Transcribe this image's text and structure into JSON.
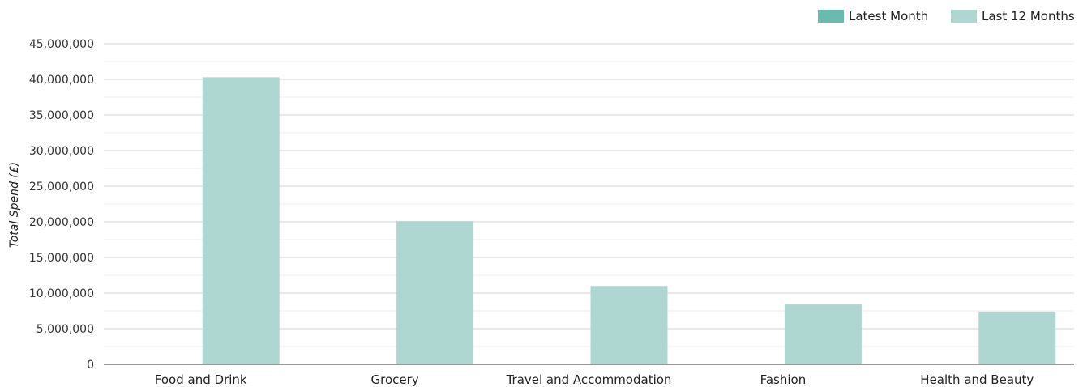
{
  "chart_data": {
    "type": "bar",
    "title": "",
    "xlabel": "",
    "ylabel": "Total Spend (£)",
    "ylim": [
      0,
      45000000
    ],
    "yticks": [
      0,
      5000000,
      10000000,
      15000000,
      20000000,
      25000000,
      30000000,
      35000000,
      40000000,
      45000000
    ],
    "ytick_labels": [
      "0",
      "5,000,000",
      "10,000,000",
      "15,000,000",
      "20,000,000",
      "25,000,000",
      "30,000,000",
      "35,000,000",
      "40,000,000",
      "45,000,000"
    ],
    "categories": [
      "Food and Drink",
      "Grocery",
      "Travel and Accommodation",
      "Fashion",
      "Health and Beauty"
    ],
    "series": [
      {
        "name": "Latest Month",
        "color": "#6cbaaf",
        "values": [
          0,
          0,
          0,
          0,
          0
        ]
      },
      {
        "name": "Last 12 Months",
        "color": "#afd7d2",
        "values": [
          40300000,
          20100000,
          11000000,
          8400000,
          7400000
        ]
      }
    ],
    "grid": true,
    "legend_position": "top-right"
  }
}
